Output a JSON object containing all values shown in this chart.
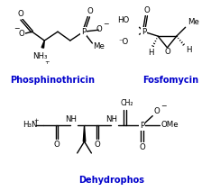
{
  "title_phosphinothricin": "Phosphinothricin",
  "title_fosfomycin": "Fosfomycin",
  "title_dehydrophos": "Dehydrophos",
  "title_color": "#0000cc",
  "title_fontsize": 7.0,
  "bg_color": "#ffffff",
  "lw": 1.0
}
